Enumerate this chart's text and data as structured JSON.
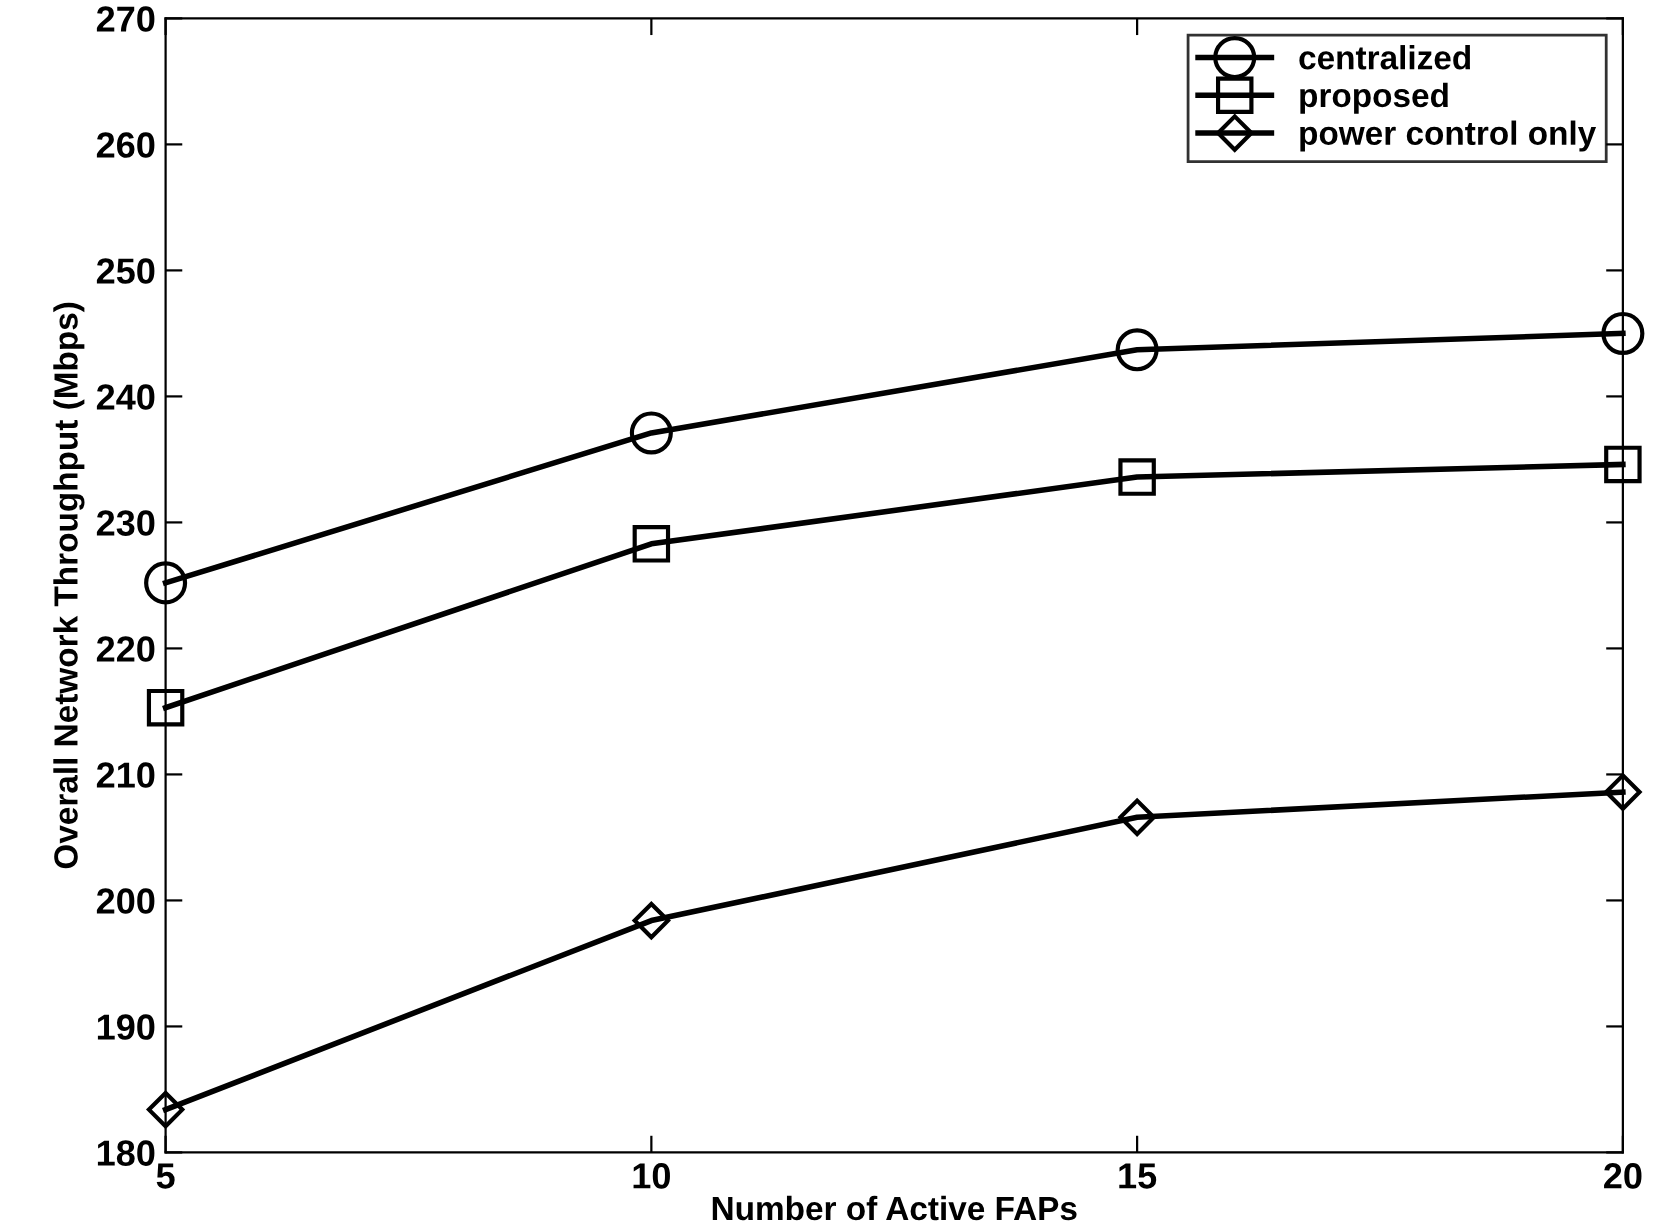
{
  "chart_data": {
    "type": "line",
    "xlabel": "Number of Active FAPs",
    "ylabel": "Overall Network Throughput (Mbps)",
    "x": [
      5,
      10,
      15,
      20
    ],
    "series": [
      {
        "name": "centralized",
        "color": "#000000",
        "marker": "circle",
        "values": [
          225.2,
          237.1,
          243.7,
          245.0
        ]
      },
      {
        "name": "proposed",
        "color": "#000000",
        "marker": "square",
        "values": [
          215.3,
          228.3,
          233.6,
          234.6
        ]
      },
      {
        "name": "power control only",
        "color": "#000000",
        "marker": "diamond",
        "values": [
          183.4,
          198.4,
          206.6,
          208.6
        ]
      }
    ],
    "xlim": [
      5,
      20
    ],
    "xticks": [
      5,
      10,
      15,
      20
    ],
    "ylim": [
      180,
      270
    ],
    "yticks": [
      180,
      190,
      200,
      210,
      220,
      230,
      240,
      250,
      260,
      270
    ],
    "grid": false,
    "legend": "top right",
    "line_style": "solid"
  }
}
